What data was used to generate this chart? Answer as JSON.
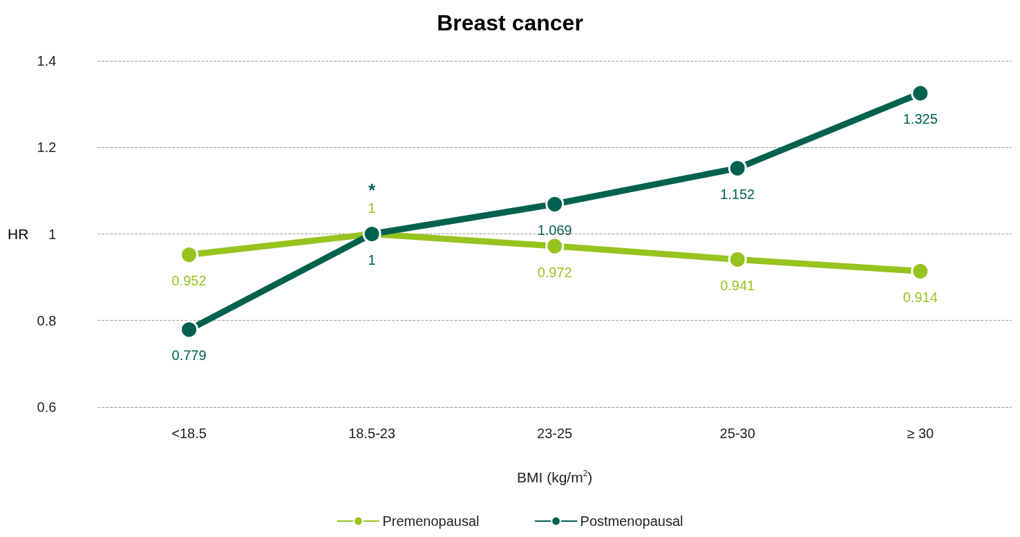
{
  "chart_data": {
    "type": "line",
    "title": "Breast cancer",
    "xlabel": "BMI (kg/m$^{2}$)",
    "ylabel": "HR",
    "categories": [
      "<18.5",
      "18.5-23",
      "23-25",
      "25-30",
      "≥ 30"
    ],
    "series": [
      {
        "name": "Premenopausal",
        "color": "#97c31e",
        "values": [
          0.952,
          1,
          0.972,
          0.941,
          0.914
        ]
      },
      {
        "name": "Postmenopausal",
        "color": "#00614f",
        "values": [
          0.779,
          1,
          1.069,
          1.152,
          1.325
        ]
      }
    ],
    "ylim": [
      0.6,
      1.4
    ],
    "yticks": [
      0.6,
      0.8,
      1,
      1.2,
      1.4
    ],
    "grid": "y",
    "legend": "bottom",
    "marker": "circle",
    "line_style": "solid",
    "data_labels": true,
    "annotations": [
      {
        "text": "*",
        "x": "18.5-23",
        "y": 1
      }
    ]
  }
}
